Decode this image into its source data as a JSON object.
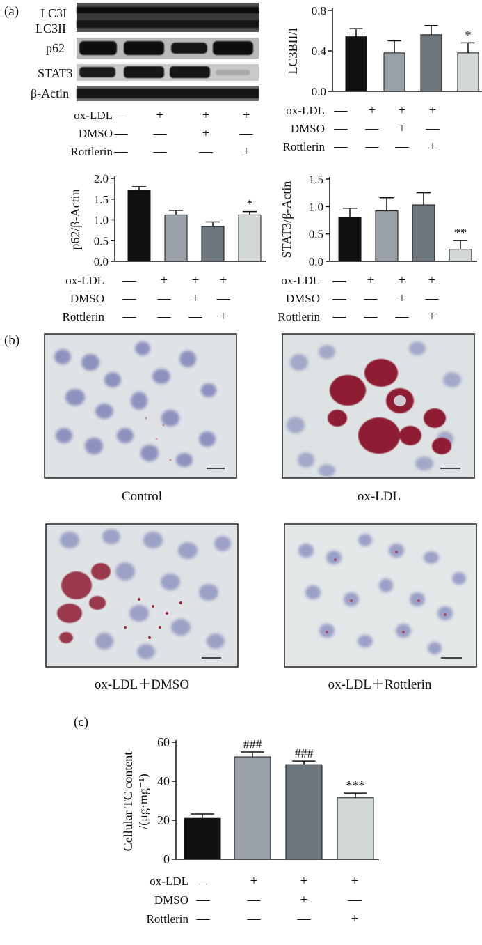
{
  "panel_labels": {
    "a": "(a)",
    "b": "(b)",
    "c": "(c)"
  },
  "blot": {
    "bands": [
      "LC3I",
      "LC3II",
      "p62",
      "STAT3",
      "β-Actin"
    ],
    "conditions": [
      {
        "label": "ox-LDL",
        "signs": [
          "—",
          "+",
          "+",
          "+"
        ]
      },
      {
        "label": "DMSO",
        "signs": [
          "—",
          "—",
          "+",
          "—"
        ]
      },
      {
        "label": "Rottlerin",
        "signs": [
          "—",
          "—",
          "—",
          "+"
        ]
      }
    ]
  },
  "micro": {
    "captions": [
      "Control",
      "ox-LDL",
      "ox-LDL＋DMSO",
      "ox-LDL＋Rottlerin"
    ]
  },
  "colors": {
    "bar1": "#111111",
    "bar2": "#99a0a8",
    "bar3": "#6e777e",
    "bar4": "#d2d8d8"
  },
  "chart_data": [
    {
      "type": "bar",
      "ylabel": "LC3BII/I",
      "ylim": [
        0,
        0.8
      ],
      "yticks": [
        "0.0",
        "0.4",
        "0.8"
      ],
      "values": [
        0.54,
        0.38,
        0.56,
        0.38
      ],
      "errors": [
        0.08,
        0.12,
        0.09,
        0.1
      ],
      "annotations": [
        "",
        "",
        "",
        "*"
      ],
      "conditions": [
        {
          "label": "ox-LDL",
          "signs": [
            "—",
            "+",
            "+",
            "+"
          ]
        },
        {
          "label": "DMSO",
          "signs": [
            "—",
            "—",
            "+",
            "—"
          ]
        },
        {
          "label": "Rottlerin",
          "signs": [
            "—",
            "—",
            "—",
            "+"
          ]
        }
      ]
    },
    {
      "type": "bar",
      "ylabel": "p62/β-Actin",
      "ylim": [
        0,
        2.0
      ],
      "yticks": [
        "0.0",
        "0.5",
        "1.0",
        "1.5",
        "2.0"
      ],
      "values": [
        1.72,
        1.12,
        0.84,
        1.12
      ],
      "errors": [
        0.08,
        0.11,
        0.11,
        0.08
      ],
      "annotations": [
        "",
        "",
        "",
        "*"
      ],
      "conditions": [
        {
          "label": "ox-LDL",
          "signs": [
            "—",
            "+",
            "+",
            "+"
          ]
        },
        {
          "label": "DMSO",
          "signs": [
            "—",
            "—",
            "+",
            "—"
          ]
        },
        {
          "label": "Rottlerin",
          "signs": [
            "—",
            "—",
            "—",
            "+"
          ]
        }
      ]
    },
    {
      "type": "bar",
      "ylabel": "STAT3/β-Actin",
      "ylim": [
        0,
        1.5
      ],
      "yticks": [
        "0.0",
        "0.5",
        "1.0",
        "1.5"
      ],
      "values": [
        0.8,
        0.92,
        1.03,
        0.22
      ],
      "errors": [
        0.17,
        0.24,
        0.22,
        0.16
      ],
      "annotations": [
        "",
        "",
        "",
        "**"
      ],
      "conditions": [
        {
          "label": "ox-LDL",
          "signs": [
            "—",
            "+",
            "+",
            "+"
          ]
        },
        {
          "label": "DMSO",
          "signs": [
            "—",
            "—",
            "+",
            "—"
          ]
        },
        {
          "label": "Rottlerin",
          "signs": [
            "—",
            "—",
            "—",
            "+"
          ]
        }
      ]
    },
    {
      "type": "bar",
      "ylabel": "Cellular TC content",
      "ylabel2": "/(μg·mg⁻¹)",
      "ylim": [
        0,
        60
      ],
      "yticks": [
        "0",
        "20",
        "40",
        "60"
      ],
      "values": [
        21,
        52.5,
        48.5,
        31.5
      ],
      "errors": [
        2.2,
        2.5,
        1.8,
        2.4
      ],
      "annotations": [
        "",
        "###",
        "###",
        "***"
      ],
      "conditions": [
        {
          "label": "ox-LDL",
          "signs": [
            "—",
            "+",
            "+",
            "+"
          ]
        },
        {
          "label": "DMSO",
          "signs": [
            "—",
            "—",
            "+",
            "—"
          ]
        },
        {
          "label": "Rottlerin",
          "signs": [
            "—",
            "—",
            "—",
            "+"
          ]
        }
      ]
    }
  ]
}
